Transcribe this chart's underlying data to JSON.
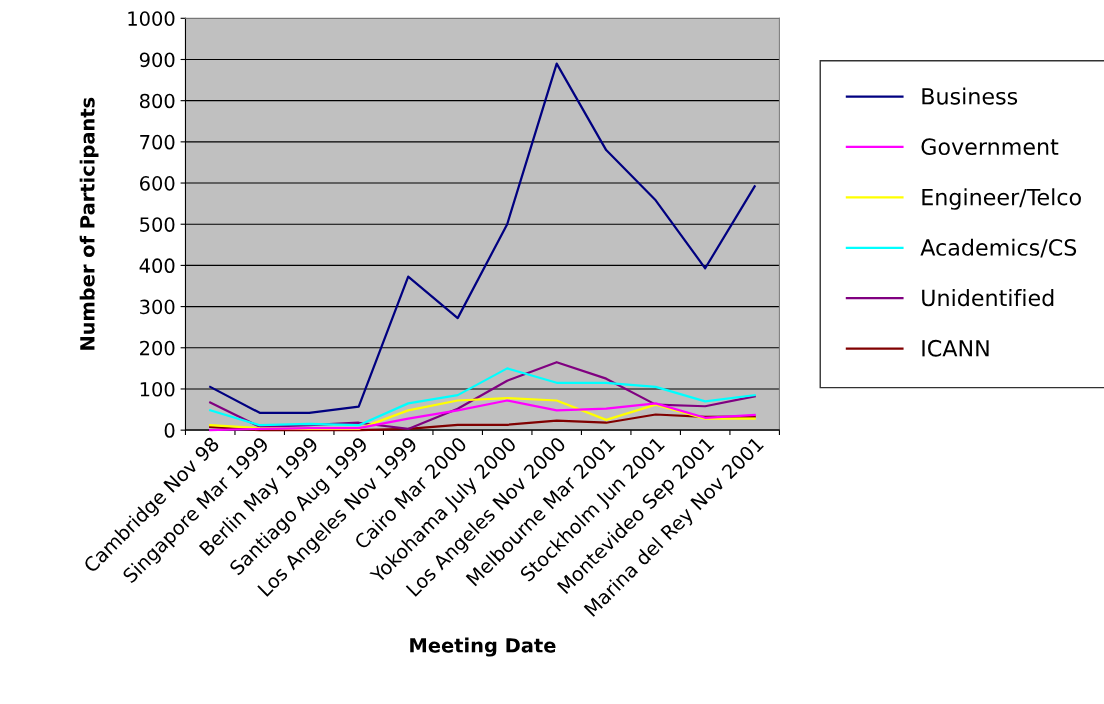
{
  "chart_data": {
    "type": "line",
    "xlabel": "Meeting Date",
    "ylabel": "Number of Participants",
    "categories": [
      "Cambridge Nov 98",
      "Singapore Mar 1999",
      "Berlin May 1999",
      "Santiago Aug 1999",
      "Los Angeles Nov 1999",
      "Cairo Mar 2000",
      "Yokohama July 2000",
      "Los Angeles Nov 2000",
      "Melbourne Mar 2001",
      "Stockholm Jun 2001",
      "Montevideo Sep 2001",
      "Marina del Rey Nov 2001"
    ],
    "series": [
      {
        "name": "Business",
        "color": "#000080",
        "values": [
          105,
          42,
          42,
          57,
          373,
          272,
          500,
          890,
          680,
          558,
          393,
          592
        ]
      },
      {
        "name": "Government",
        "color": "#ff00ff",
        "values": [
          0,
          3,
          5,
          5,
          28,
          48,
          72,
          48,
          52,
          65,
          30,
          37
        ]
      },
      {
        "name": "Engineer/Telco",
        "color": "#ffff00",
        "values": [
          12,
          5,
          3,
          3,
          48,
          72,
          78,
          72,
          25,
          62,
          28,
          28
        ]
      },
      {
        "name": "Academics/CS",
        "color": "#00ffff",
        "values": [
          48,
          12,
          15,
          12,
          65,
          85,
          150,
          115,
          115,
          105,
          70,
          85
        ]
      },
      {
        "name": "Unidentified",
        "color": "#800080",
        "values": [
          67,
          8,
          12,
          18,
          3,
          52,
          120,
          165,
          125,
          62,
          58,
          82
        ]
      },
      {
        "name": "ICANN",
        "color": "#800000",
        "values": [
          8,
          0,
          0,
          0,
          3,
          13,
          13,
          23,
          18,
          38,
          32,
          33
        ]
      }
    ],
    "ylim": [
      0,
      1000
    ],
    "yticks": [
      0,
      100,
      200,
      300,
      400,
      500,
      600,
      700,
      800,
      900,
      1000
    ],
    "grid": "y",
    "legend": "right",
    "marker": "none",
    "line_style": "solid"
  }
}
